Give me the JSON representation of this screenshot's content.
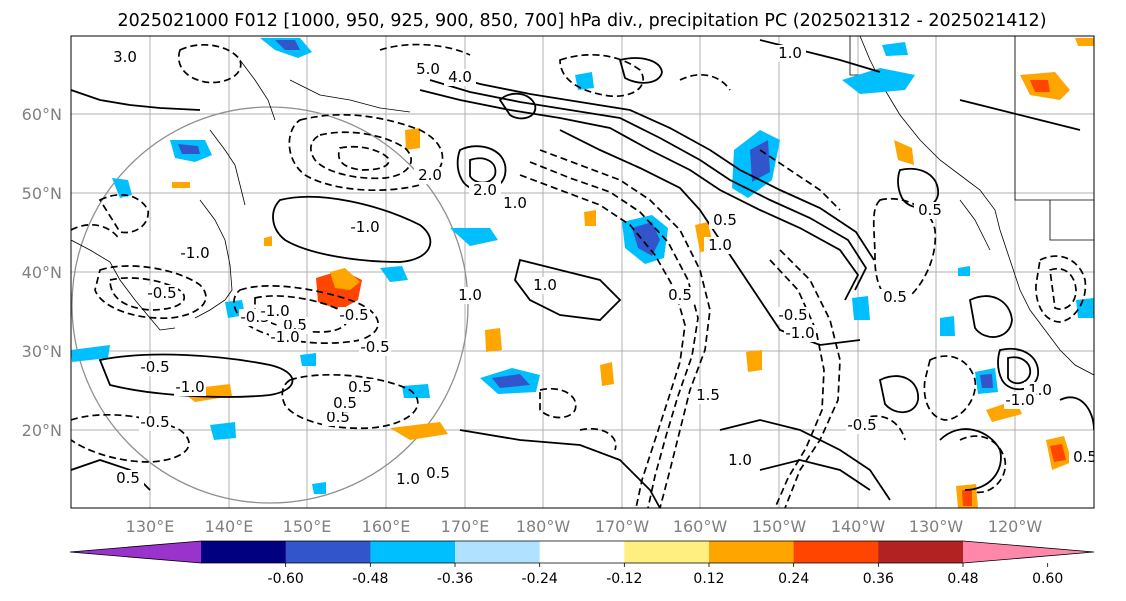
{
  "title": "2025021000 F012 [1000, 950, 925, 900, 850, 700] hPa div., precipitation PC (2025021312 - 2025021412)",
  "map": {
    "lat_labels": [
      "60°N",
      "50°N",
      "40°N",
      "30°N",
      "20°N"
    ],
    "lon_labels": [
      "130°E",
      "140°E",
      "150°E",
      "160°E",
      "170°E",
      "180°W",
      "170°W",
      "160°W",
      "150°W",
      "140°W",
      "130°W",
      "120°W"
    ],
    "contour_labels": [
      "5.0",
      "4.0",
      "3.0",
      "2.0",
      "2.0",
      "1.0",
      "1.0",
      "1.0",
      "-1.0",
      "1.0",
      "-0.5",
      "-1.0",
      "-0.5",
      "0.5",
      "-0.5",
      "-1.0",
      "-0.5",
      "-1.0",
      "0.5",
      "-0.5",
      "-1.0",
      "0.5",
      "0.5",
      "-0.5",
      "0.5",
      "0.5",
      "1.0",
      "0.5",
      "1.0",
      "0.5",
      "1.5",
      "-1.0",
      "-0.5",
      "1.0",
      "-0.5",
      "0.5",
      "0.5",
      "1.0",
      "-1.0",
      "0.5"
    ]
  },
  "colorbar": {
    "ticks": [
      "-0.60",
      "-0.48",
      "-0.36",
      "-0.24",
      "-0.12",
      "0.12",
      "0.24",
      "0.36",
      "0.48",
      "0.60"
    ],
    "colors": [
      "#9933cc",
      "#000080",
      "#3355cc",
      "#00bfff",
      "#b0e2ff",
      "#ffffff",
      "#ffee80",
      "#ffa500",
      "#ff4500",
      "#b22222",
      "#ff88aa"
    ]
  }
}
